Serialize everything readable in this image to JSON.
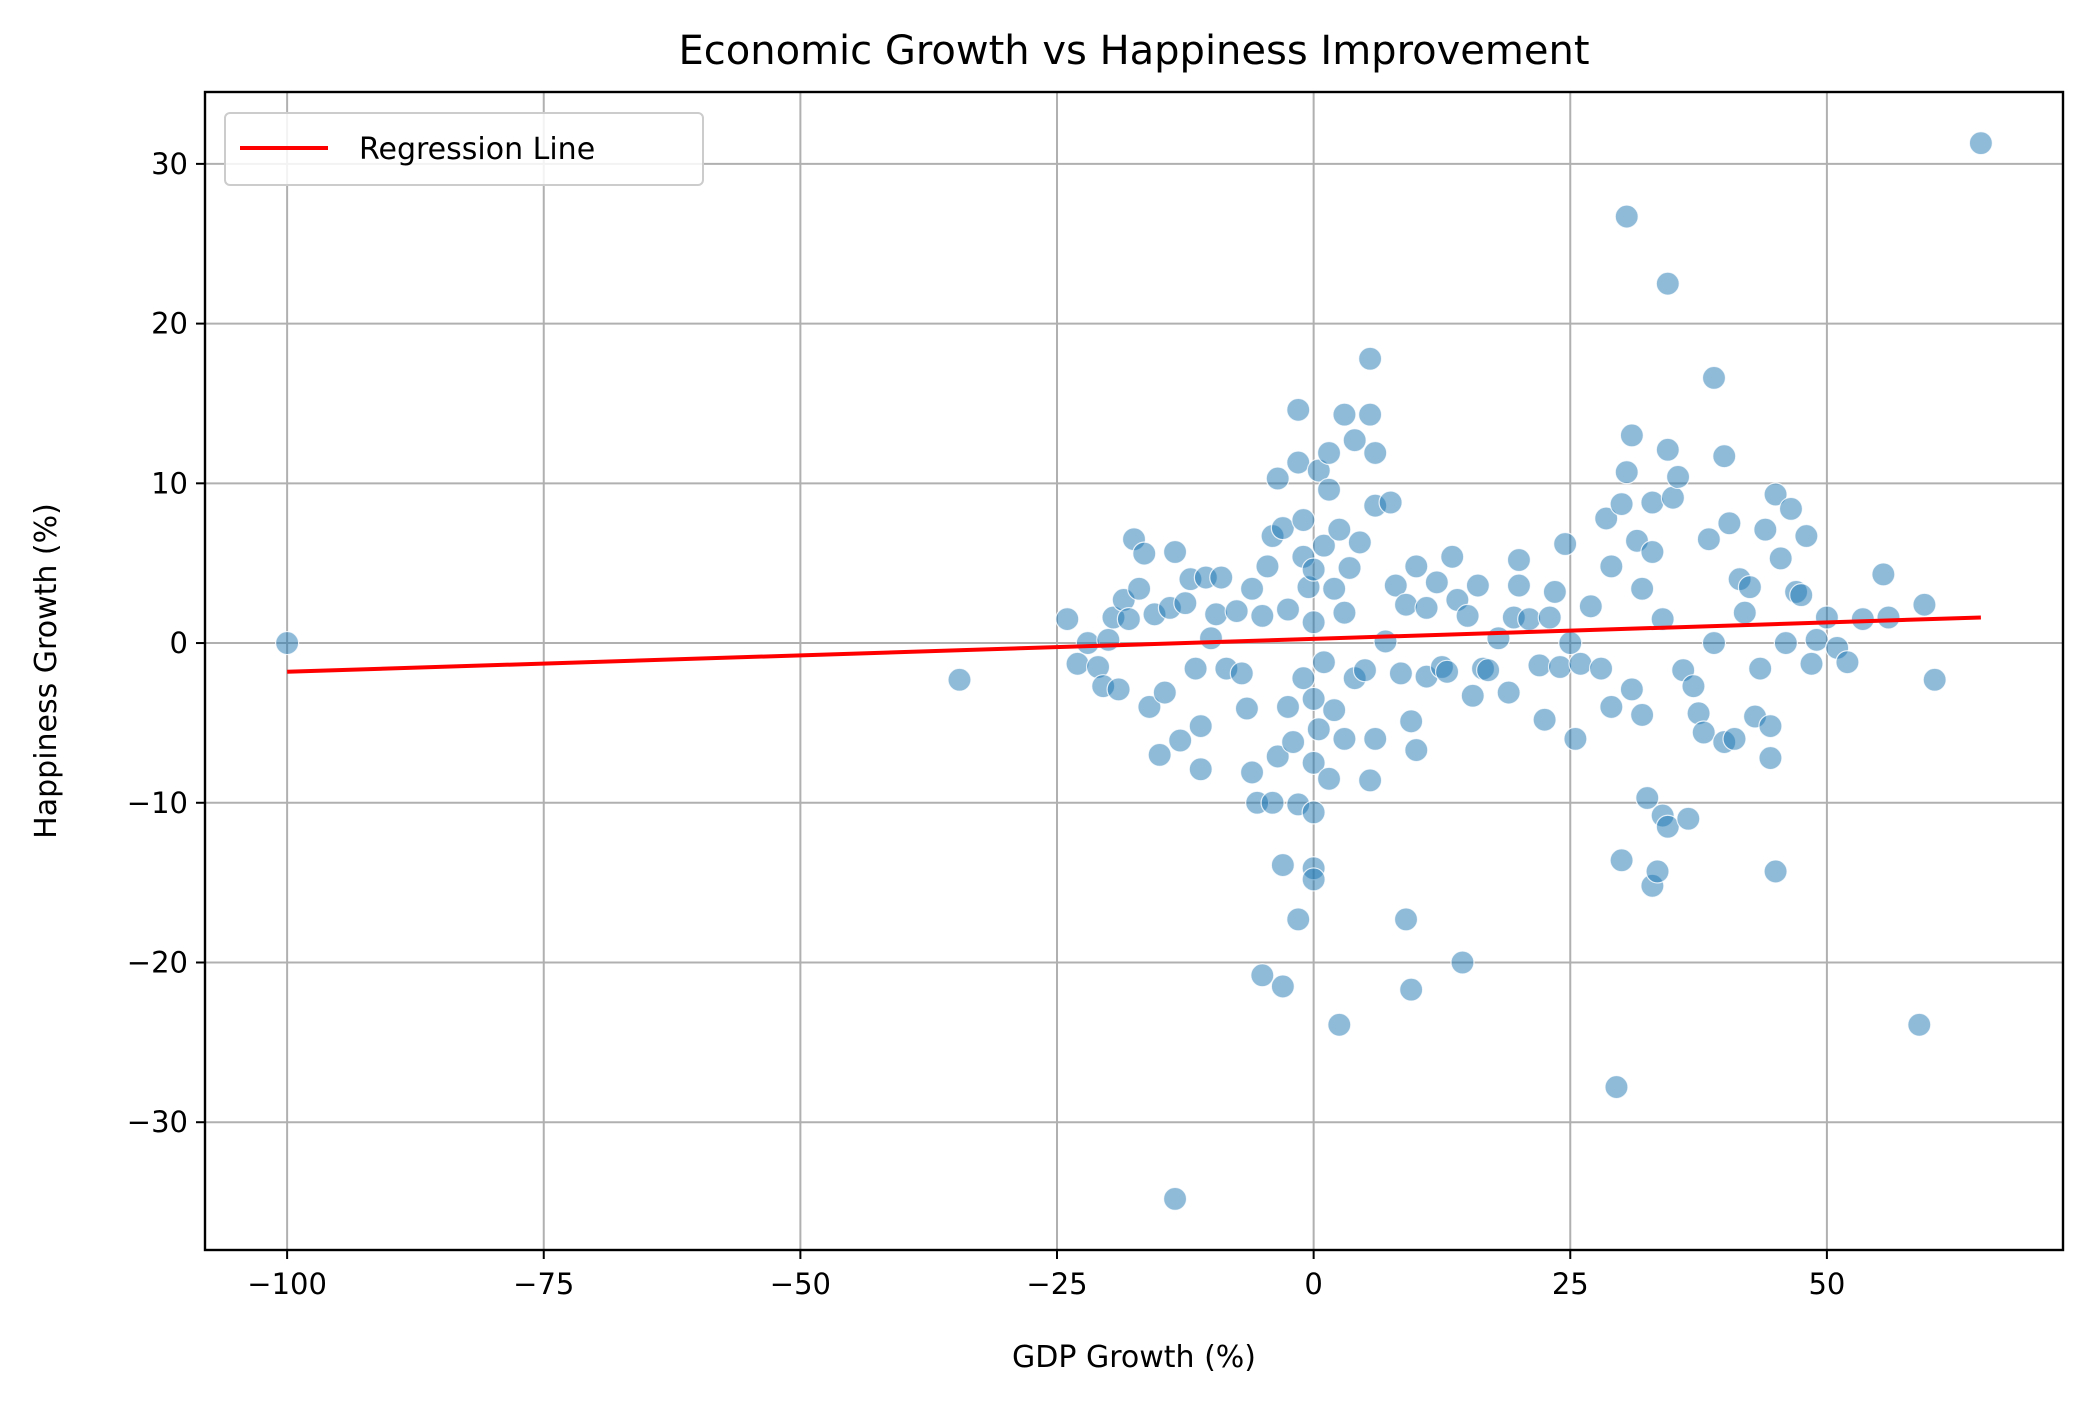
{
  "chart_data": {
    "type": "scatter",
    "title": "Economic Growth vs Happiness Improvement",
    "xlabel": "GDP Growth (%)",
    "ylabel": "Happiness Growth (%)",
    "xlim": [
      -108,
      73
    ],
    "ylim": [
      -38,
      34.5
    ],
    "xticks": [
      -100,
      -75,
      -50,
      -25,
      0,
      25,
      50
    ],
    "xtick_labels": [
      "−100",
      "−75",
      "−50",
      "−25",
      "0",
      "25",
      "50"
    ],
    "yticks": [
      -30,
      -20,
      -10,
      0,
      10,
      20,
      30
    ],
    "ytick_labels": [
      "−30",
      "−20",
      "−10",
      "0",
      "10",
      "20",
      "30"
    ],
    "grid": true,
    "legend": {
      "position": "top-left",
      "entries": [
        "Regression Line"
      ]
    },
    "colors": {
      "points": "#1f77b4",
      "regression": "#ff0000",
      "grid": "#b0b0b0"
    },
    "regression": {
      "name": "Regression Line",
      "x": [
        -100,
        65
      ],
      "y": [
        -1.8,
        1.6
      ]
    },
    "points": [
      [
        -100,
        0
      ],
      [
        -34.5,
        -2.3
      ],
      [
        -24,
        1.5
      ],
      [
        -23,
        -1.3
      ],
      [
        -22,
        0
      ],
      [
        -21,
        -1.5
      ],
      [
        -20.5,
        -2.7
      ],
      [
        -20,
        0.2
      ],
      [
        -19.5,
        1.6
      ],
      [
        -19,
        -2.9
      ],
      [
        -18.5,
        2.7
      ],
      [
        -18,
        1.5
      ],
      [
        -17.5,
        6.5
      ],
      [
        -17,
        3.4
      ],
      [
        -16.5,
        5.6
      ],
      [
        -16,
        -4
      ],
      [
        -15.5,
        1.8
      ],
      [
        -15,
        -7
      ],
      [
        -14.5,
        -3.1
      ],
      [
        -14,
        2.2
      ],
      [
        -13.5,
        5.7
      ],
      [
        -13.5,
        -34.8
      ],
      [
        -13,
        -6.1
      ],
      [
        -12.5,
        2.5
      ],
      [
        -12,
        4
      ],
      [
        -11.5,
        -1.6
      ],
      [
        -11,
        -7.9
      ],
      [
        -11,
        -5.2
      ],
      [
        -10.5,
        4.1
      ],
      [
        -10,
        0.3
      ],
      [
        -9.5,
        1.8
      ],
      [
        -9,
        4.1
      ],
      [
        -8.5,
        -1.6
      ],
      [
        -7.5,
        2
      ],
      [
        -7,
        -1.9
      ],
      [
        -6.5,
        -4.1
      ],
      [
        -6,
        -8.1
      ],
      [
        -6,
        3.4
      ],
      [
        -5.5,
        -10
      ],
      [
        -5,
        -20.8
      ],
      [
        -5,
        1.7
      ],
      [
        -4.5,
        4.8
      ],
      [
        -4,
        -10
      ],
      [
        -4,
        6.7
      ],
      [
        -3.5,
        -7.1
      ],
      [
        -3.5,
        10.3
      ],
      [
        -3,
        -21.5
      ],
      [
        -3,
        -13.9
      ],
      [
        -3,
        7.2
      ],
      [
        -2.5,
        2.1
      ],
      [
        -2.5,
        -4
      ],
      [
        -2,
        -6.2
      ],
      [
        -1.5,
        14.6
      ],
      [
        -1.5,
        11.3
      ],
      [
        -1.5,
        -10.1
      ],
      [
        -1.5,
        -17.3
      ],
      [
        -1,
        7.7
      ],
      [
        -1,
        5.4
      ],
      [
        -1,
        -2.2
      ],
      [
        -0.5,
        3.5
      ],
      [
        0,
        -10.6
      ],
      [
        0,
        -14.1
      ],
      [
        0,
        -14.8
      ],
      [
        0,
        -7.5
      ],
      [
        0,
        -3.5
      ],
      [
        0,
        1.3
      ],
      [
        0,
        4.6
      ],
      [
        0.5,
        10.8
      ],
      [
        0.5,
        -5.4
      ],
      [
        1,
        6.1
      ],
      [
        1,
        -1.2
      ],
      [
        1.5,
        11.9
      ],
      [
        1.5,
        -8.5
      ],
      [
        1.5,
        9.6
      ],
      [
        2,
        -4.2
      ],
      [
        2,
        3.4
      ],
      [
        2.5,
        -23.9
      ],
      [
        2.5,
        7.1
      ],
      [
        3,
        14.3
      ],
      [
        3,
        -6
      ],
      [
        3,
        1.9
      ],
      [
        3.5,
        4.7
      ],
      [
        4,
        12.7
      ],
      [
        4,
        -2.2
      ],
      [
        4.5,
        6.3
      ],
      [
        5,
        -1.7
      ],
      [
        5.5,
        14.3
      ],
      [
        5.5,
        -8.6
      ],
      [
        5.5,
        17.8
      ],
      [
        6,
        11.9
      ],
      [
        6,
        -6
      ],
      [
        6,
        8.6
      ],
      [
        7,
        0.1
      ],
      [
        7.5,
        8.8
      ],
      [
        8,
        3.6
      ],
      [
        8.5,
        -1.9
      ],
      [
        9,
        -17.3
      ],
      [
        9,
        2.4
      ],
      [
        9.5,
        -21.7
      ],
      [
        9.5,
        -4.9
      ],
      [
        10,
        -6.7
      ],
      [
        10,
        4.8
      ],
      [
        11,
        -2.1
      ],
      [
        11,
        2.2
      ],
      [
        12,
        3.8
      ],
      [
        12.5,
        -1.5
      ],
      [
        13,
        -1.8
      ],
      [
        13.5,
        5.4
      ],
      [
        14,
        2.7
      ],
      [
        14.5,
        -20
      ],
      [
        15,
        1.7
      ],
      [
        15.5,
        -3.3
      ],
      [
        16,
        3.6
      ],
      [
        16.5,
        -1.6
      ],
      [
        17,
        -1.7
      ],
      [
        18,
        0.3
      ],
      [
        19,
        -3.1
      ],
      [
        19.5,
        1.6
      ],
      [
        20,
        5.2
      ],
      [
        20,
        3.6
      ],
      [
        21,
        1.5
      ],
      [
        22,
        -1.4
      ],
      [
        22.5,
        -4.8
      ],
      [
        23,
        1.6
      ],
      [
        23.5,
        3.2
      ],
      [
        24,
        -1.5
      ],
      [
        24.5,
        6.2
      ],
      [
        25,
        0
      ],
      [
        25.5,
        -6
      ],
      [
        26,
        -1.3
      ],
      [
        27,
        2.3
      ],
      [
        28,
        -1.6
      ],
      [
        28.5,
        7.8
      ],
      [
        29,
        4.8
      ],
      [
        29,
        -4
      ],
      [
        29.5,
        -27.8
      ],
      [
        30,
        -13.6
      ],
      [
        30,
        8.7
      ],
      [
        30.5,
        26.7
      ],
      [
        30.5,
        10.7
      ],
      [
        31,
        13
      ],
      [
        31,
        -2.9
      ],
      [
        31.5,
        6.4
      ],
      [
        32,
        -4.5
      ],
      [
        32,
        3.4
      ],
      [
        32.5,
        -9.7
      ],
      [
        33,
        8.8
      ],
      [
        33,
        -15.2
      ],
      [
        33,
        5.7
      ],
      [
        33.5,
        -14.3
      ],
      [
        34,
        -10.8
      ],
      [
        34,
        1.5
      ],
      [
        34.5,
        -11.5
      ],
      [
        34.5,
        22.5
      ],
      [
        34.5,
        12.1
      ],
      [
        35,
        9.1
      ],
      [
        35.5,
        10.4
      ],
      [
        36,
        -1.7
      ],
      [
        36.5,
        -11
      ],
      [
        37,
        -2.7
      ],
      [
        37.5,
        -4.4
      ],
      [
        38,
        -5.6
      ],
      [
        38.5,
        6.5
      ],
      [
        39,
        16.6
      ],
      [
        39,
        0
      ],
      [
        40,
        11.7
      ],
      [
        40,
        -6.2
      ],
      [
        40.5,
        7.5
      ],
      [
        41,
        -6
      ],
      [
        41.5,
        4
      ],
      [
        42,
        1.9
      ],
      [
        42.5,
        3.5
      ],
      [
        43,
        -4.6
      ],
      [
        43.5,
        -1.6
      ],
      [
        44,
        7.1
      ],
      [
        44.5,
        -5.2
      ],
      [
        44.5,
        -7.2
      ],
      [
        45,
        9.3
      ],
      [
        45,
        -14.3
      ],
      [
        45.5,
        5.3
      ],
      [
        46,
        0
      ],
      [
        46.5,
        8.4
      ],
      [
        47,
        3.2
      ],
      [
        47.5,
        3
      ],
      [
        48,
        6.7
      ],
      [
        48.5,
        -1.3
      ],
      [
        49,
        0.2
      ],
      [
        50,
        1.6
      ],
      [
        51,
        -0.3
      ],
      [
        52,
        -1.2
      ],
      [
        53.5,
        1.5
      ],
      [
        55.5,
        4.3
      ],
      [
        56,
        1.6
      ],
      [
        59,
        -23.9
      ],
      [
        59.5,
        2.4
      ],
      [
        60.5,
        -2.3
      ],
      [
        65,
        31.3
      ]
    ]
  }
}
